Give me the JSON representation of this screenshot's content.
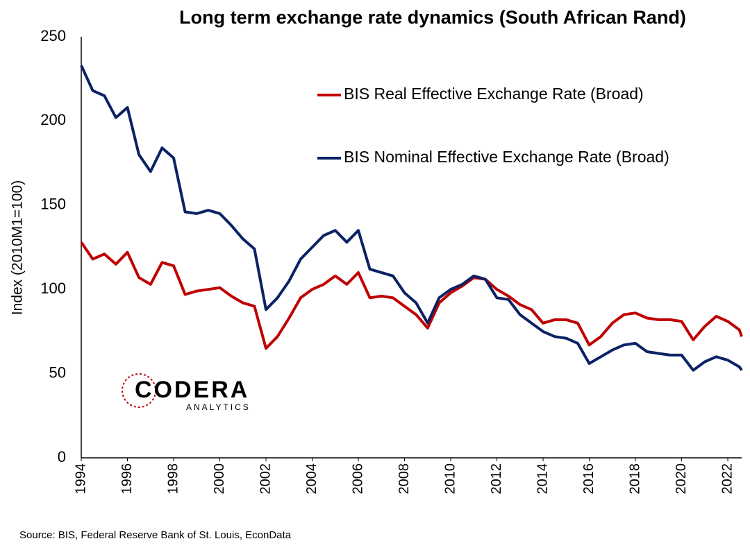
{
  "chart_data": {
    "type": "line",
    "title": "Long term exchange rate dynamics (South African Rand)",
    "y_label": "Index (2010M1=100)",
    "source": "Source: BIS, Federal Reserve Bank of St. Louis, EconData",
    "logo": {
      "name": "CODERA",
      "tagline": "ANALYTICS"
    },
    "x": [
      1994,
      1994.5,
      1995,
      1995.5,
      1996,
      1996.5,
      1997,
      1997.5,
      1998,
      1998.5,
      1999,
      1999.5,
      2000,
      2000.5,
      2001,
      2001.5,
      2002,
      2002.5,
      2003,
      2003.5,
      2004,
      2004.5,
      2005,
      2005.5,
      2006,
      2006.5,
      2007,
      2007.5,
      2008,
      2008.5,
      2009,
      2009.5,
      2010,
      2010.5,
      2011,
      2011.5,
      2012,
      2012.5,
      2013,
      2013.5,
      2014,
      2014.5,
      2015,
      2015.5,
      2016,
      2016.5,
      2017,
      2017.5,
      2018,
      2018.5,
      2019,
      2019.5,
      2020,
      2020.5,
      2021,
      2021.5,
      2022,
      2022.5,
      2022.6
    ],
    "series": [
      {
        "name": "BIS Real Effective Exchange Rate (Broad)",
        "color": "#c00000",
        "values": [
          128,
          118,
          121,
          115,
          122,
          107,
          103,
          116,
          114,
          97,
          99,
          100,
          101,
          96,
          92,
          90,
          65,
          72,
          83,
          95,
          100,
          103,
          108,
          103,
          110,
          95,
          96,
          95,
          90,
          85,
          77,
          92,
          98,
          102,
          107,
          106,
          100,
          96,
          91,
          88,
          80,
          82,
          82,
          80,
          67,
          72,
          80,
          85,
          86,
          83,
          82,
          82,
          81,
          70,
          78,
          84,
          81,
          76,
          72
        ]
      },
      {
        "name": "BIS Nominal Effective Exchange Rate (Broad)",
        "color": "#0b2265",
        "values": [
          233,
          218,
          215,
          202,
          208,
          180,
          170,
          184,
          178,
          146,
          145,
          147,
          145,
          138,
          130,
          124,
          88,
          95,
          105,
          118,
          125,
          132,
          135,
          128,
          135,
          112,
          110,
          108,
          98,
          92,
          80,
          95,
          100,
          103,
          108,
          106,
          95,
          94,
          85,
          80,
          75,
          72,
          71,
          68,
          56,
          60,
          64,
          67,
          68,
          63,
          62,
          61,
          61,
          52,
          57,
          60,
          58,
          54,
          52
        ]
      }
    ],
    "xlim": [
      1994,
      2022.6
    ],
    "xticks": [
      1994,
      1996,
      1998,
      2000,
      2002,
      2004,
      2006,
      2008,
      2010,
      2012,
      2014,
      2016,
      2018,
      2020,
      2022
    ],
    "ylim": [
      0,
      250
    ],
    "yticks": [
      0,
      50,
      100,
      150,
      200,
      250
    ],
    "grid": false,
    "legend": "upper right"
  }
}
